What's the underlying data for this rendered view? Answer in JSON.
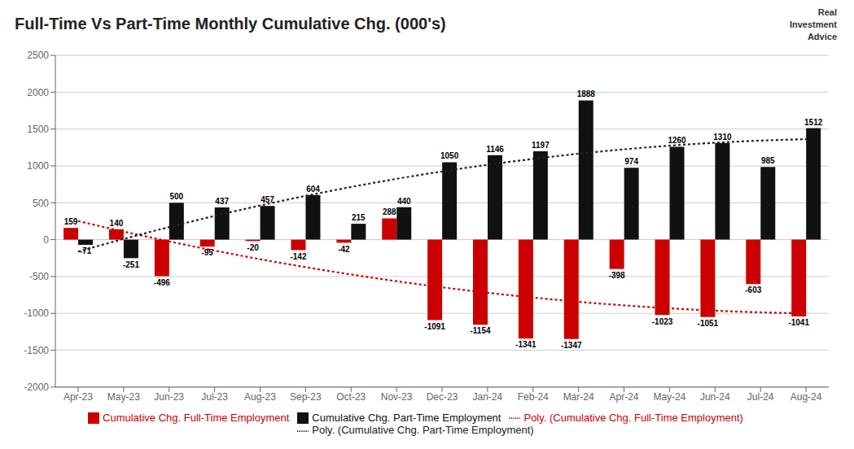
{
  "chart_data": {
    "type": "bar",
    "title": "Full-Time Vs Part-Time Monthly Cumulative Chg. (000's)",
    "categories": [
      "Apr-23",
      "May-23",
      "Jun-23",
      "Jul-23",
      "Aug-23",
      "Sep-23",
      "Oct-23",
      "Nov-23",
      "Dec-23",
      "Jan-24",
      "Feb-24",
      "Mar-24",
      "Apr-24",
      "May-24",
      "Jun-24",
      "Jul-24",
      "Aug-24"
    ],
    "series": [
      {
        "name": "Cumulative Chg. Full-Time Employment",
        "type": "bar",
        "color": "#cc0000",
        "data_labels": true,
        "values": [
          159,
          140,
          -496,
          -95,
          -20,
          -142,
          -42,
          288,
          -1091,
          -1154,
          -1341,
          -1347,
          -398,
          -1023,
          -1051,
          -603,
          -1041
        ]
      },
      {
        "name": "Cumulative Chg. Part-Time Employment",
        "type": "bar",
        "color": "#111111",
        "data_labels": true,
        "values": [
          -71,
          -251,
          500,
          437,
          457,
          604,
          215,
          440,
          1050,
          1146,
          1197,
          1888,
          974,
          1260,
          1310,
          985,
          1512
        ]
      },
      {
        "name": "Poly. (Cumulative Chg. Full-Time Employment)",
        "type": "line",
        "color": "#cc0000",
        "line_style": "dotted",
        "data_labels": false,
        "values": [
          251.5,
          109.5,
          -23.9,
          -148.9,
          -265.4,
          -373.4,
          -472.9,
          -563.9,
          -646.4,
          -720.4,
          -786.0,
          -843.0,
          -891.6,
          -931.7,
          -963.3,
          -986.4,
          -1001.0
        ]
      },
      {
        "name": "Poly. (Cumulative Chg. Part-Time Employment)",
        "type": "line",
        "color": "#222222",
        "line_style": "dotted",
        "data_labels": false,
        "values": [
          -162.2,
          9.2,
          170.4,
          321.6,
          462.5,
          593.3,
          714.0,
          824.5,
          924.9,
          1015.1,
          1095.2,
          1165.1,
          1224.9,
          1274.5,
          1314.0,
          1343.3,
          1362.5
        ]
      }
    ],
    "ylim": [
      -2000,
      2500
    ],
    "yticks": [
      -2000,
      -1500,
      -1000,
      -500,
      0,
      500,
      1000,
      1500,
      2000,
      2500
    ],
    "grid": true,
    "legend": "bottom",
    "annotations": [
      {
        "text": "Real\nInvestment\nAdvice"
      }
    ]
  }
}
